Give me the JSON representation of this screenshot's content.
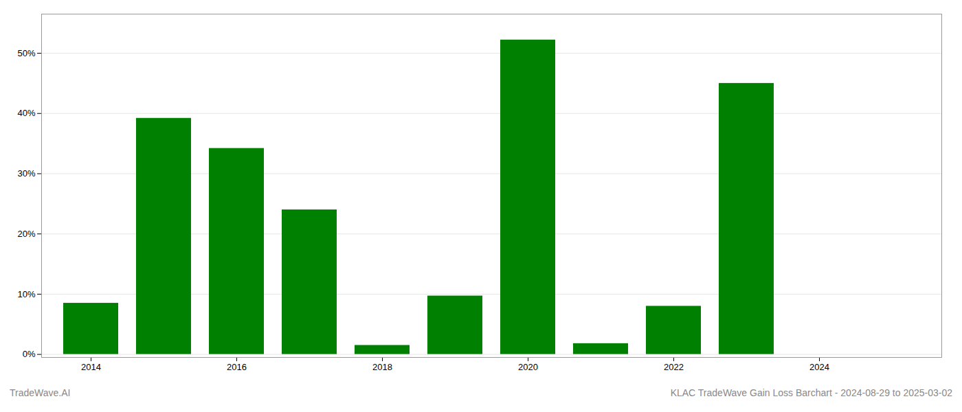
{
  "chart_data": {
    "type": "bar",
    "categories": [
      "2014",
      null,
      "2016",
      null,
      "2018",
      null,
      "2020",
      null,
      "2022",
      null,
      "2024",
      null
    ],
    "values": [
      8.5,
      39.2,
      34.2,
      24.0,
      1.5,
      9.7,
      52.2,
      1.8,
      8.0,
      45.0,
      0,
      0
    ],
    "color": "#008000",
    "ylim": [
      -0.5,
      56.5
    ],
    "yticks": [
      {
        "value": 0,
        "label": "0%"
      },
      {
        "value": 10,
        "label": "10%"
      },
      {
        "value": 20,
        "label": "20%"
      },
      {
        "value": 30,
        "label": "30%"
      },
      {
        "value": 40,
        "label": "40%"
      },
      {
        "value": 50,
        "label": "50%"
      }
    ],
    "grid": true,
    "annotations": [
      "TradeWave.AI",
      "KLAC TradeWave Gain Loss Barchart - 2024-08-29 to 2025-03-02"
    ]
  }
}
